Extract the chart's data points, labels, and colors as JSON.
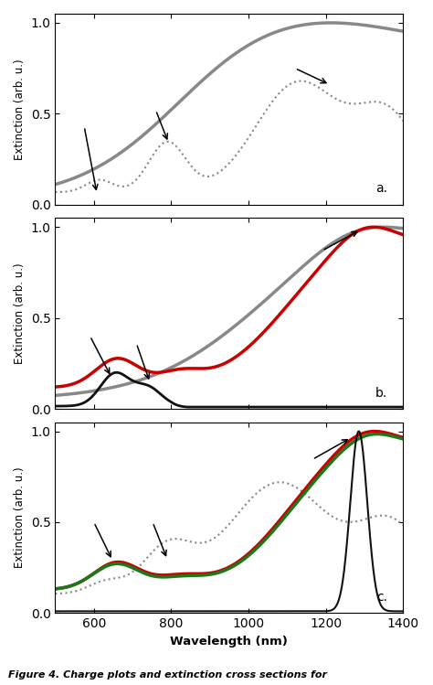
{
  "xlim": [
    500,
    1400
  ],
  "ylim": [
    0.0,
    1.05
  ],
  "xlabel": "Wavelength (nm)",
  "ylabel": "Extinction (arb. u.)",
  "figsize": [
    4.74,
    7.49
  ],
  "dpi": 100,
  "panel_labels": [
    "a.",
    "b.",
    "c."
  ],
  "bg_color": "#ffffff",
  "gray_solid_color": "#888888",
  "gray_dotted_color": "#888888",
  "red_color": "#cc0000",
  "green_color": "#1a7a1a",
  "black_color": "#111111",
  "caption": "Figure 4. Charge plots and extinction cross sections for"
}
